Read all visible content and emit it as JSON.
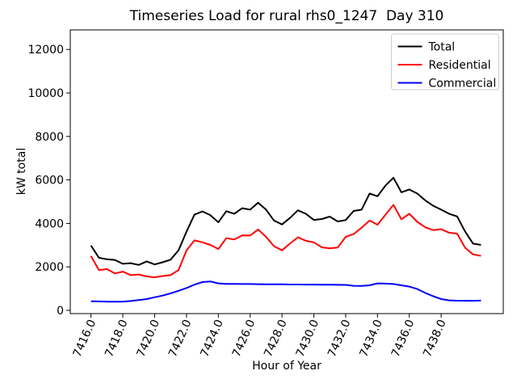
{
  "title": "Timeseries Load for rural rhs0_1247  Day 310",
  "xlabel": "Hour of Year",
  "ylabel": "kW total",
  "chart_data": {
    "type": "line",
    "x": [
      7416.0,
      7416.5,
      7417.0,
      7417.5,
      7418.0,
      7418.5,
      7419.0,
      7419.5,
      7420.0,
      7420.5,
      7421.0,
      7421.5,
      7422.0,
      7422.5,
      7423.0,
      7423.5,
      7424.0,
      7424.5,
      7425.0,
      7425.5,
      7426.0,
      7426.5,
      7427.0,
      7427.5,
      7428.0,
      7428.5,
      7429.0,
      7429.5,
      7430.0,
      7430.5,
      7431.0,
      7431.5,
      7432.0,
      7432.5,
      7433.0,
      7433.5,
      7434.0,
      7434.5,
      7435.0,
      7435.5,
      7436.0,
      7436.5,
      7437.0,
      7437.5,
      7438.0,
      7438.5,
      7439.0,
      7439.5,
      7440.0,
      7440.5
    ],
    "series": [
      {
        "name": "Total",
        "color": "#000000",
        "values": [
          2980,
          2420,
          2350,
          2320,
          2140,
          2170,
          2090,
          2250,
          2110,
          2210,
          2330,
          2760,
          3620,
          4400,
          4550,
          4380,
          4050,
          4560,
          4440,
          4700,
          4630,
          4950,
          4630,
          4130,
          3950,
          4250,
          4600,
          4440,
          4160,
          4200,
          4310,
          4090,
          4150,
          4570,
          4630,
          5370,
          5250,
          5740,
          6100,
          5430,
          5560,
          5370,
          5060,
          4810,
          4630,
          4440,
          4320,
          3630,
          3070,
          3010
        ]
      },
      {
        "name": "Residential",
        "color": "#ff0000",
        "values": [
          2500,
          1850,
          1900,
          1700,
          1780,
          1620,
          1650,
          1560,
          1520,
          1580,
          1620,
          1850,
          2760,
          3220,
          3130,
          3010,
          2820,
          3320,
          3260,
          3450,
          3440,
          3720,
          3380,
          2950,
          2760,
          3070,
          3360,
          3200,
          3130,
          2900,
          2850,
          2890,
          3380,
          3510,
          3800,
          4130,
          3940,
          4400,
          4850,
          4190,
          4440,
          4070,
          3820,
          3690,
          3730,
          3570,
          3530,
          2880,
          2570,
          2510
        ]
      },
      {
        "name": "Commercial",
        "color": "#0000ff",
        "values": [
          420,
          410,
          400,
          395,
          400,
          430,
          470,
          520,
          600,
          680,
          780,
          900,
          1030,
          1180,
          1300,
          1330,
          1240,
          1220,
          1215,
          1210,
          1210,
          1205,
          1200,
          1195,
          1195,
          1190,
          1190,
          1185,
          1185,
          1180,
          1180,
          1175,
          1170,
          1130,
          1120,
          1150,
          1240,
          1230,
          1210,
          1150,
          1090,
          980,
          800,
          650,
          520,
          460,
          445,
          440,
          440,
          450
        ]
      }
    ],
    "xticks": {
      "values": [
        7416,
        7418,
        7420,
        7422,
        7424,
        7426,
        7428,
        7430,
        7432,
        7434,
        7436,
        7438
      ],
      "labels": [
        "7416.0",
        "7418.0",
        "7420.0",
        "7422.0",
        "7424.0",
        "7426.0",
        "7428.0",
        "7430.0",
        "7432.0",
        "7434.0",
        "7436.0",
        "7438.0"
      ]
    },
    "yticks": {
      "values": [
        0,
        2000,
        4000,
        6000,
        8000,
        10000,
        12000
      ],
      "labels": [
        "0",
        "2000",
        "4000",
        "6000",
        "8000",
        "10000",
        "12000"
      ]
    },
    "xlim": [
      7414.7,
      7441.9
    ],
    "ylim": [
      -150,
      12900
    ],
    "grid": false,
    "legend": {
      "position": "upper right",
      "entries": [
        {
          "label": "Total",
          "color": "#000000"
        },
        {
          "label": "Residential",
          "color": "#ff0000"
        },
        {
          "label": "Commercial",
          "color": "#0000ff"
        }
      ]
    }
  }
}
